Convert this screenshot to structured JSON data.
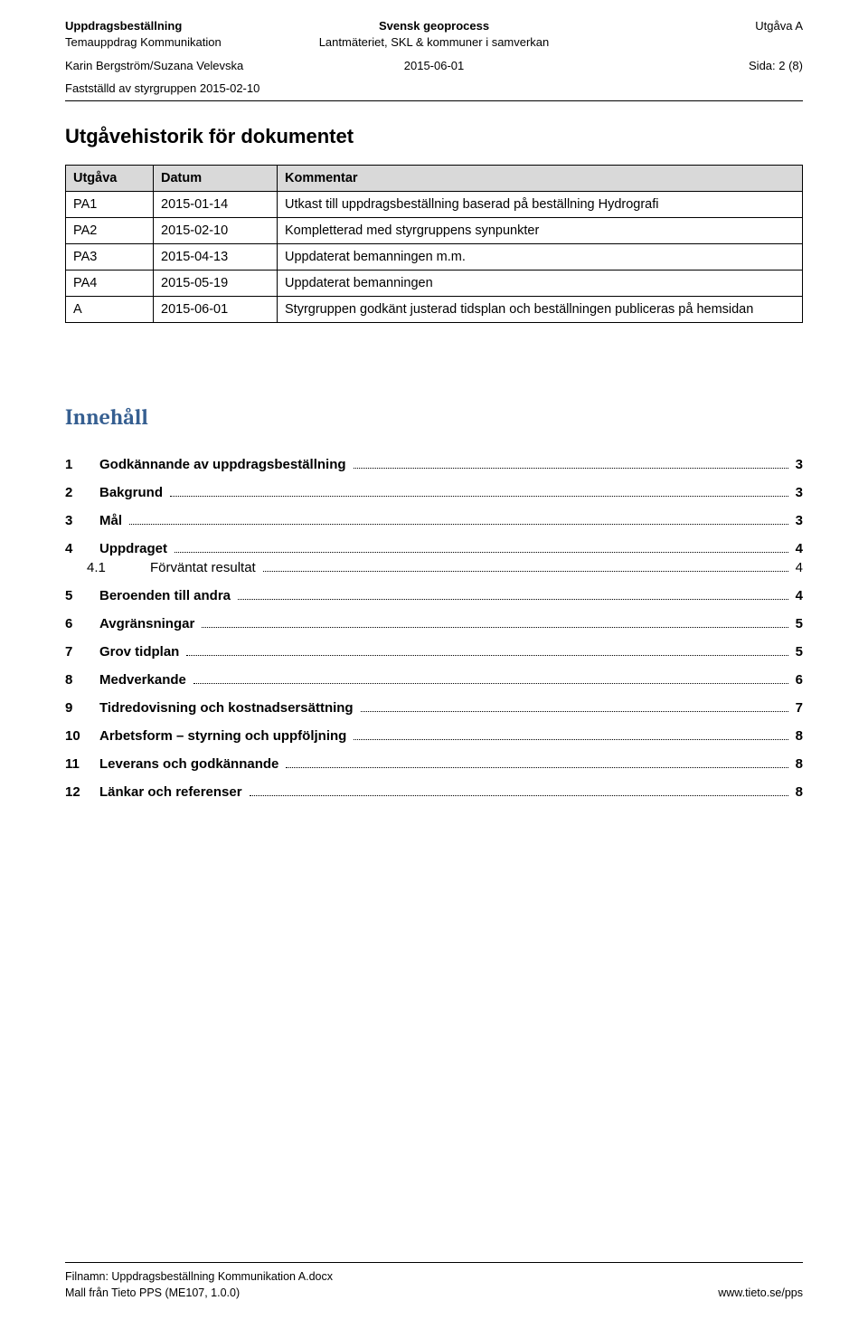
{
  "header": {
    "left1": "Uppdragsbeställning",
    "left2": "Temauppdrag Kommunikation",
    "centerTitle": "Svensk geoprocess",
    "centerSub": "Lantmäteriet, SKL & kommuner i samverkan",
    "right1": "Utgåva A",
    "authors": "Karin Bergström/Suzana Velevska",
    "date": "2015-06-01",
    "page": "Sida: 2 (8)",
    "approved": "Fastställd av styrgruppen 2015-02-10"
  },
  "historyTitle": "Utgåvehistorik för dokumentet",
  "historyHeaders": {
    "utgava": "Utgåva",
    "datum": "Datum",
    "kommentar": "Kommentar"
  },
  "history": [
    {
      "u": "PA1",
      "d": "2015-01-14",
      "k": "Utkast till uppdragsbeställning baserad på beställning Hydrografi"
    },
    {
      "u": "PA2",
      "d": "2015-02-10",
      "k": "Kompletterad med styrgruppens synpunkter"
    },
    {
      "u": "PA3",
      "d": "2015-04-13",
      "k": "Uppdaterat bemanningen m.m."
    },
    {
      "u": "PA4",
      "d": "2015-05-19",
      "k": "Uppdaterat bemanningen"
    },
    {
      "u": "A",
      "d": "2015-06-01",
      "k": "Styrgruppen godkänt justerad tidsplan och beställningen publiceras på hemsidan"
    }
  ],
  "tocTitle": "Innehåll",
  "toc": [
    {
      "n": "1",
      "label": "Godkännande av uppdragsbeställning",
      "p": "3",
      "lvl": 1
    },
    {
      "n": "2",
      "label": "Bakgrund",
      "p": "3",
      "lvl": 1
    },
    {
      "n": "3",
      "label": "Mål",
      "p": "3",
      "lvl": 1
    },
    {
      "n": "4",
      "label": "Uppdraget",
      "p": "4",
      "lvl": 1
    },
    {
      "n": "4.1",
      "label": "Förväntat resultat",
      "p": "4",
      "lvl": 2
    },
    {
      "n": "5",
      "label": "Beroenden till andra",
      "p": "4",
      "lvl": 1
    },
    {
      "n": "6",
      "label": "Avgränsningar",
      "p": "5",
      "lvl": 1
    },
    {
      "n": "7",
      "label": "Grov tidplan",
      "p": "5",
      "lvl": 1
    },
    {
      "n": "8",
      "label": "Medverkande",
      "p": "6",
      "lvl": 1
    },
    {
      "n": "9",
      "label": "Tidredovisning och kostnadsersättning",
      "p": "7",
      "lvl": 1
    },
    {
      "n": "10",
      "label": "Arbetsform – styrning och uppföljning",
      "p": "8",
      "lvl": 1
    },
    {
      "n": "11",
      "label": "Leverans och godkännande",
      "p": "8",
      "lvl": 1
    },
    {
      "n": "12",
      "label": "Länkar och referenser",
      "p": "8",
      "lvl": 1
    }
  ],
  "footer": {
    "filename": "Filnamn: Uppdragsbeställning Kommunikation A.docx",
    "template": "Mall från Tieto PPS (ME107, 1.0.0)",
    "url": "www.tieto.se/pps"
  }
}
